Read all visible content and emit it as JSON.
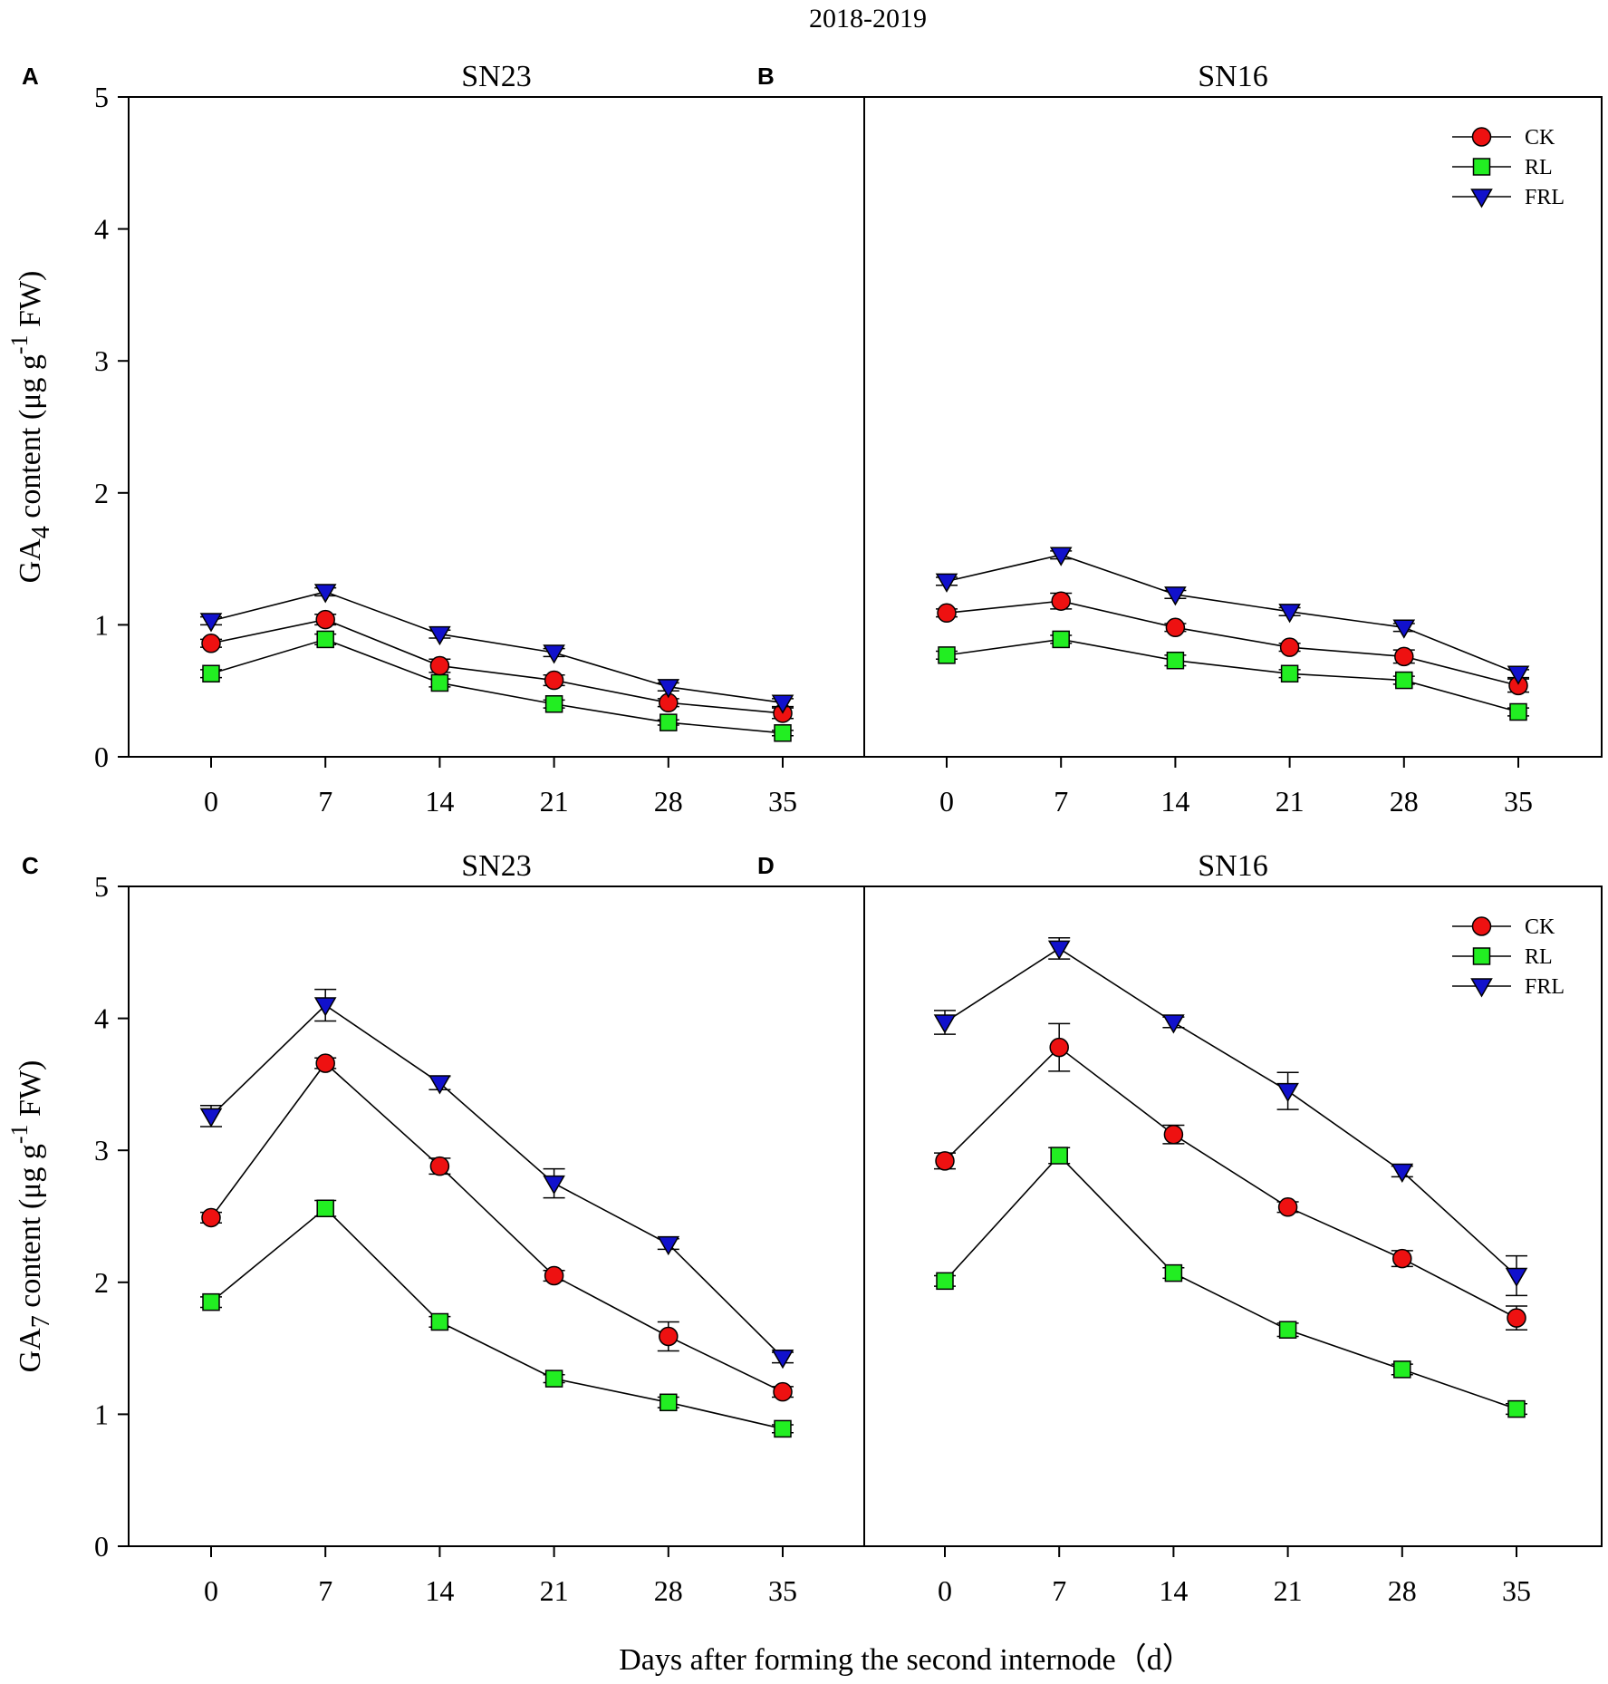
{
  "figure": {
    "title": "2018-2019",
    "xlabel": "Days after forming the second internode（d）"
  },
  "colors": {
    "CK": "#ee1111",
    "RL": "#22ee22",
    "FRL": "#1111cc"
  },
  "chart_data": [
    {
      "type": "line",
      "panel": "A",
      "title": "SN23",
      "ylabel_main": "GA",
      "ylabel_sub": "4",
      "ylabel_rest": " content (μg g",
      "ylabel_sup": "-1",
      "ylabel_end": " FW)",
      "x": [
        0,
        7,
        14,
        21,
        28,
        35
      ],
      "xticks": [
        "0",
        "7",
        "14",
        "21",
        "28",
        "35"
      ],
      "yticks": [
        "0",
        "1",
        "2",
        "3",
        "4",
        "5"
      ],
      "ylim": [
        0,
        5
      ],
      "legend": false,
      "series": [
        {
          "name": "CK",
          "marker": "circle",
          "values": [
            0.86,
            1.04,
            0.69,
            0.58,
            0.41,
            0.33
          ],
          "errors": [
            0.03,
            0.04,
            0.05,
            0.04,
            0.03,
            0.04
          ]
        },
        {
          "name": "RL",
          "marker": "square",
          "values": [
            0.63,
            0.89,
            0.56,
            0.4,
            0.26,
            0.18
          ],
          "errors": [
            0.03,
            0.04,
            0.03,
            0.03,
            0.02,
            0.02
          ]
        },
        {
          "name": "FRL",
          "marker": "triangle-down",
          "values": [
            1.03,
            1.25,
            0.93,
            0.79,
            0.53,
            0.41
          ],
          "errors": [
            0.03,
            0.03,
            0.03,
            0.03,
            0.03,
            0.03
          ]
        }
      ]
    },
    {
      "type": "line",
      "panel": "B",
      "title": "SN16",
      "x": [
        0,
        7,
        14,
        21,
        28,
        35
      ],
      "xticks": [
        "0",
        "7",
        "14",
        "21",
        "28",
        "35"
      ],
      "ylim": [
        0,
        5
      ],
      "legend": true,
      "series": [
        {
          "name": "CK",
          "marker": "circle",
          "values": [
            1.09,
            1.18,
            0.98,
            0.83,
            0.76,
            0.54
          ],
          "errors": [
            0.03,
            0.06,
            0.03,
            0.03,
            0.05,
            0.05
          ]
        },
        {
          "name": "RL",
          "marker": "square",
          "values": [
            0.77,
            0.89,
            0.73,
            0.63,
            0.58,
            0.34
          ],
          "errors": [
            0.03,
            0.03,
            0.04,
            0.03,
            0.03,
            0.03
          ]
        },
        {
          "name": "FRL",
          "marker": "triangle-down",
          "values": [
            1.33,
            1.53,
            1.23,
            1.1,
            0.98,
            0.63
          ],
          "errors": [
            0.03,
            0.03,
            0.03,
            0.03,
            0.03,
            0.03
          ]
        }
      ]
    },
    {
      "type": "line",
      "panel": "C",
      "title": "SN23",
      "ylabel_main": "GA",
      "ylabel_sub": "7",
      "ylabel_rest": " content (μg g",
      "ylabel_sup": "-1",
      "ylabel_end": " FW)",
      "x": [
        0,
        7,
        14,
        21,
        28,
        35
      ],
      "xticks": [
        "0",
        "7",
        "14",
        "21",
        "28",
        "35"
      ],
      "yticks": [
        "0",
        "1",
        "2",
        "3",
        "4",
        "5"
      ],
      "ylim": [
        0,
        5
      ],
      "legend": false,
      "series": [
        {
          "name": "CK",
          "marker": "circle",
          "values": [
            2.49,
            3.66,
            2.88,
            2.05,
            1.59,
            1.17
          ],
          "errors": [
            0.04,
            0.04,
            0.06,
            0.04,
            0.11,
            0.04
          ]
        },
        {
          "name": "RL",
          "marker": "square",
          "values": [
            1.85,
            2.56,
            1.7,
            1.27,
            1.09,
            0.89
          ],
          "errors": [
            0.04,
            0.06,
            0.04,
            0.03,
            0.04,
            0.03
          ]
        },
        {
          "name": "FRL",
          "marker": "triangle-down",
          "values": [
            3.26,
            4.1,
            3.51,
            2.75,
            2.29,
            1.43
          ],
          "errors": [
            0.08,
            0.12,
            0.05,
            0.11,
            0.04,
            0.04
          ]
        }
      ]
    },
    {
      "type": "line",
      "panel": "D",
      "title": "SN16",
      "x": [
        0,
        7,
        14,
        21,
        28,
        35
      ],
      "xticks": [
        "0",
        "7",
        "14",
        "21",
        "28",
        "35"
      ],
      "ylim": [
        0,
        5
      ],
      "legend": true,
      "series": [
        {
          "name": "CK",
          "marker": "circle",
          "values": [
            2.92,
            3.78,
            3.12,
            2.57,
            2.18,
            1.73
          ],
          "errors": [
            0.06,
            0.18,
            0.07,
            0.04,
            0.06,
            0.09
          ]
        },
        {
          "name": "RL",
          "marker": "square",
          "values": [
            2.01,
            2.96,
            2.07,
            1.64,
            1.34,
            1.04
          ],
          "errors": [
            0.04,
            0.06,
            0.04,
            0.05,
            0.04,
            0.04
          ]
        },
        {
          "name": "FRL",
          "marker": "triangle-down",
          "values": [
            3.97,
            4.53,
            3.97,
            3.45,
            2.84,
            2.05
          ],
          "errors": [
            0.09,
            0.08,
            0.04,
            0.14,
            0.04,
            0.15
          ]
        }
      ]
    }
  ]
}
